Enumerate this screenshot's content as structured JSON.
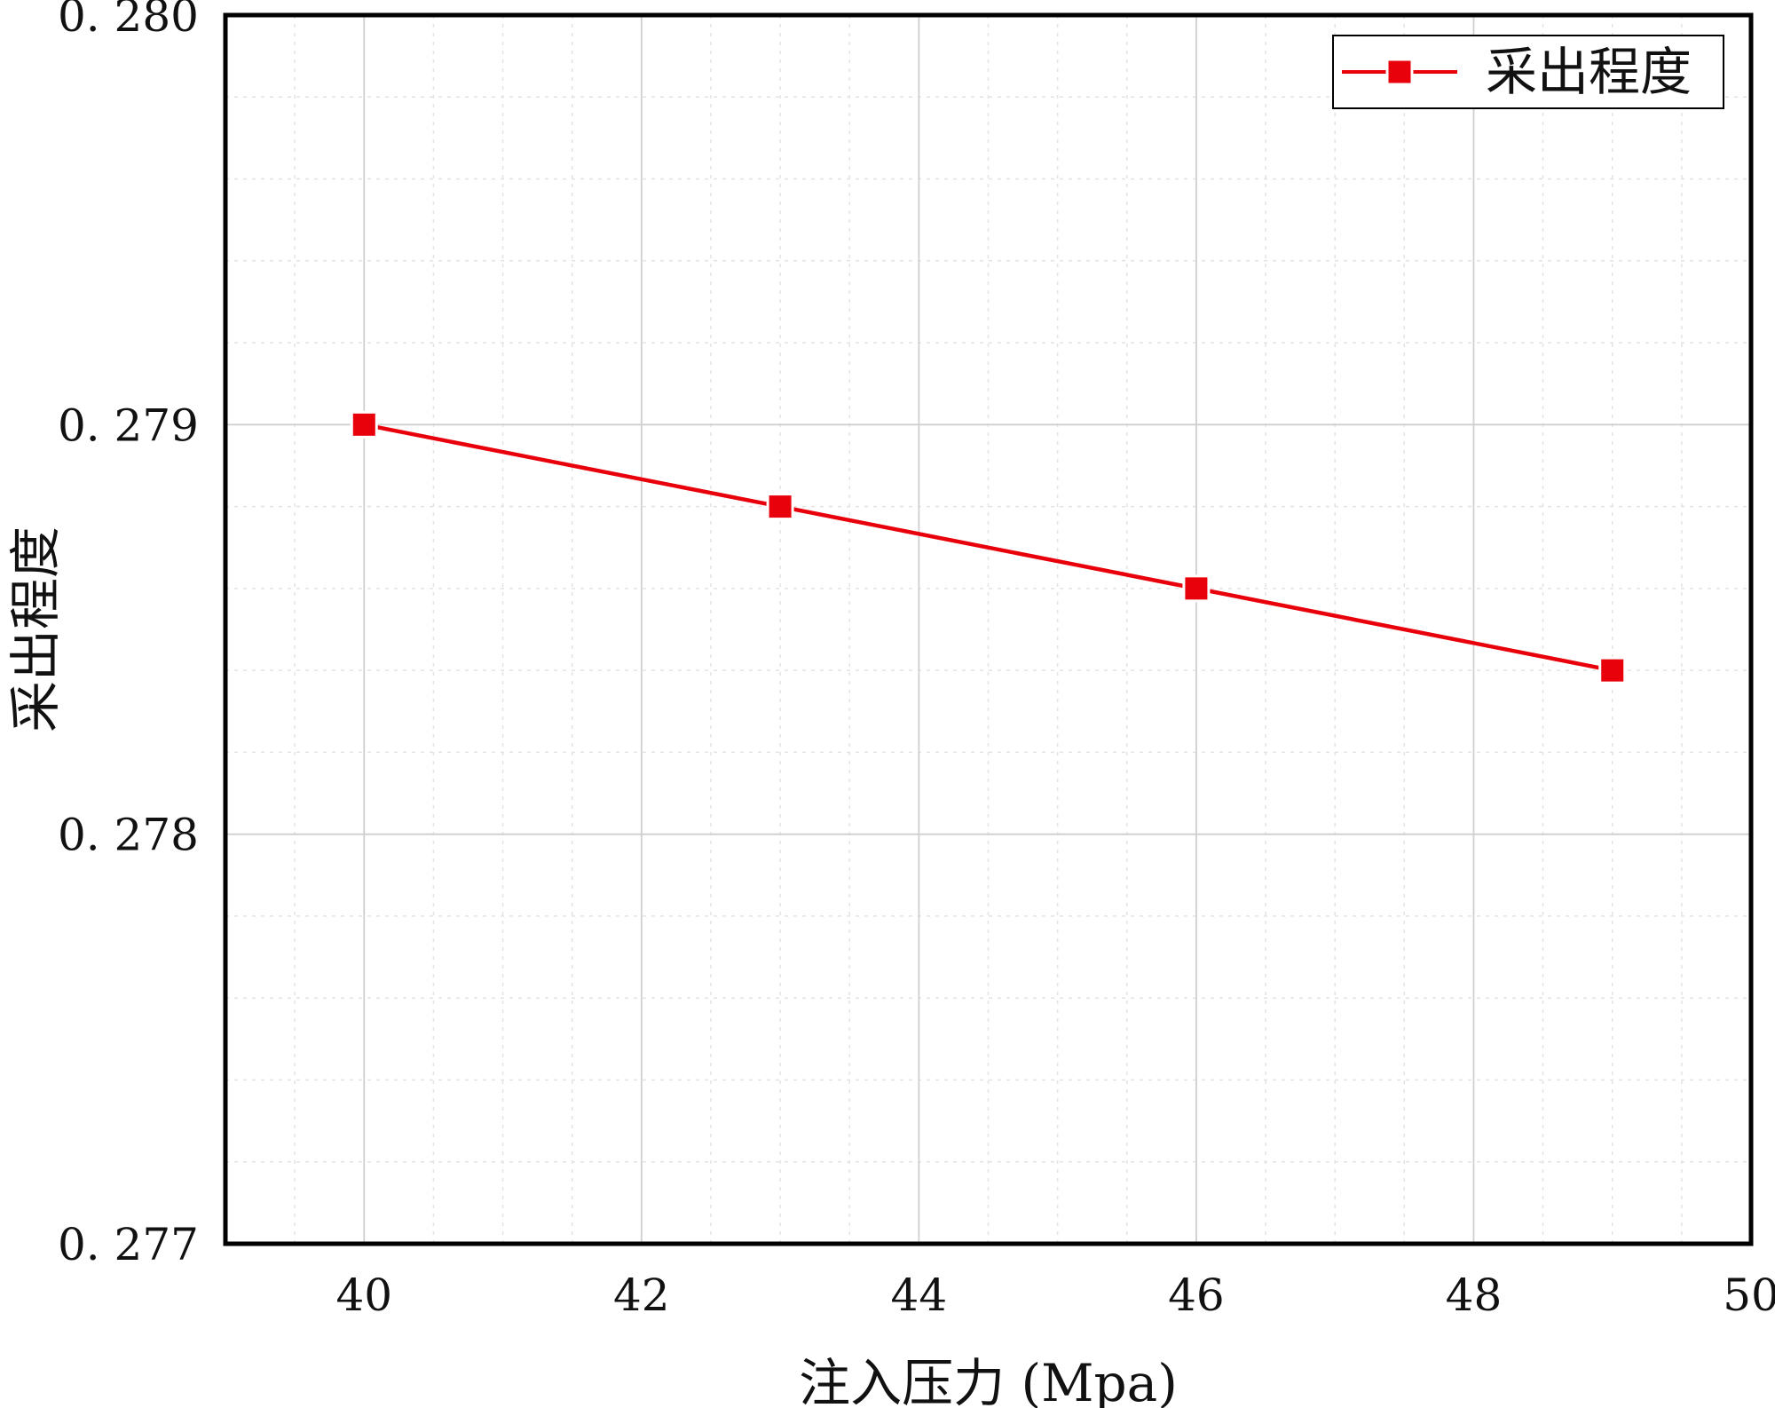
{
  "chart_data": {
    "type": "line",
    "title": "",
    "xlabel": "注入压力 (Mpa)",
    "ylabel": "采出程度",
    "xlim": [
      39,
      50
    ],
    "ylim": [
      0.277,
      0.28
    ],
    "x_ticks": [
      40,
      42,
      44,
      46,
      48,
      50
    ],
    "x_tick_labels": [
      "40",
      "42",
      "44",
      "46",
      "48",
      "50"
    ],
    "y_ticks": [
      0.277,
      0.278,
      0.279,
      0.28
    ],
    "y_tick_labels": [
      "0. 277",
      "0. 278",
      "0. 279",
      "0. 280"
    ],
    "grid": true,
    "minor_grid": true,
    "legend_position": "top-right",
    "series": [
      {
        "name": "采出程度",
        "color": "#e8000b",
        "marker": "square",
        "x": [
          40,
          43,
          46,
          49
        ],
        "y": [
          0.279,
          0.2788,
          0.2786,
          0.2784
        ]
      }
    ]
  }
}
